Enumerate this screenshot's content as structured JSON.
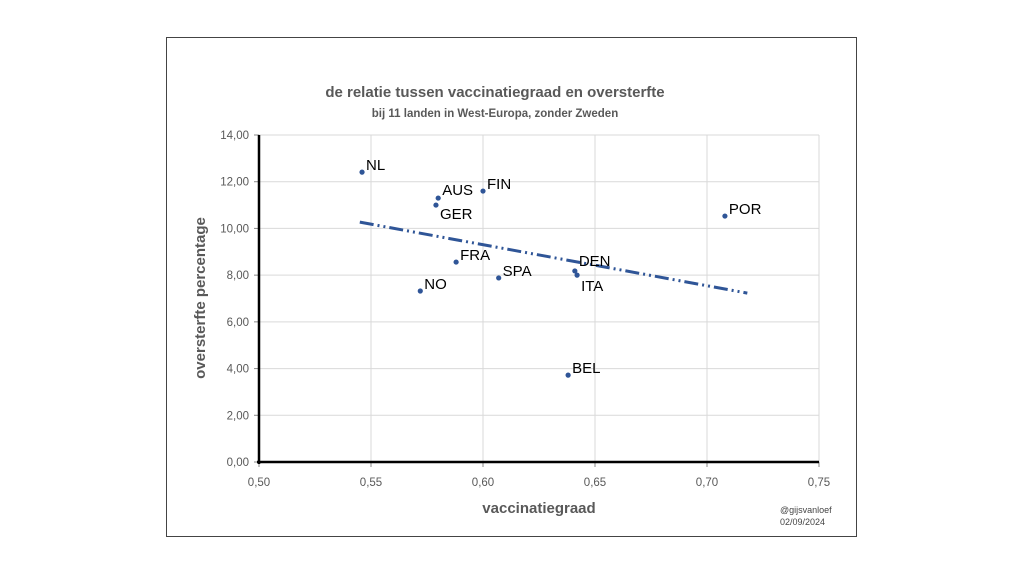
{
  "chart_data": {
    "type": "scatter",
    "title": "de relatie tussen vaccinatiegraad en oversterfte",
    "subtitle": "bij 11 landen in West-Europa, zonder Zweden",
    "xlabel": "vaccinatiegraad",
    "ylabel": "oversterfte percentage",
    "xlim": [
      0.5,
      0.75
    ],
    "ylim": [
      0,
      14
    ],
    "grid": true,
    "xticks": [
      "0,50",
      "0,55",
      "0,60",
      "0,65",
      "0,70",
      "0,75"
    ],
    "yticks": [
      "0,00",
      "2,00",
      "4,00",
      "6,00",
      "8,00",
      "10,00",
      "12,00",
      "14,00"
    ],
    "points": [
      {
        "label": "NL",
        "x": 0.546,
        "y": 12.41
      },
      {
        "label": "AUS",
        "x": 0.58,
        "y": 11.3
      },
      {
        "label": "GER",
        "x": 0.579,
        "y": 11.0
      },
      {
        "label": "FIN",
        "x": 0.6,
        "y": 11.6
      },
      {
        "label": "POR",
        "x": 0.708,
        "y": 10.53
      },
      {
        "label": "FRA",
        "x": 0.588,
        "y": 8.56
      },
      {
        "label": "DEN",
        "x": 0.641,
        "y": 8.18
      },
      {
        "label": "ITA",
        "x": 0.642,
        "y": 8.0
      },
      {
        "label": "SPA",
        "x": 0.607,
        "y": 7.88
      },
      {
        "label": "NO",
        "x": 0.572,
        "y": 7.32
      },
      {
        "label": "BEL",
        "x": 0.638,
        "y": 3.72
      }
    ],
    "trendline": {
      "x": [
        0.545,
        0.718
      ],
      "y": [
        10.27,
        7.23
      ]
    },
    "annotations": [
      "@gijsvanloef",
      "02/09/2024"
    ],
    "series_color": "#2f5597"
  }
}
